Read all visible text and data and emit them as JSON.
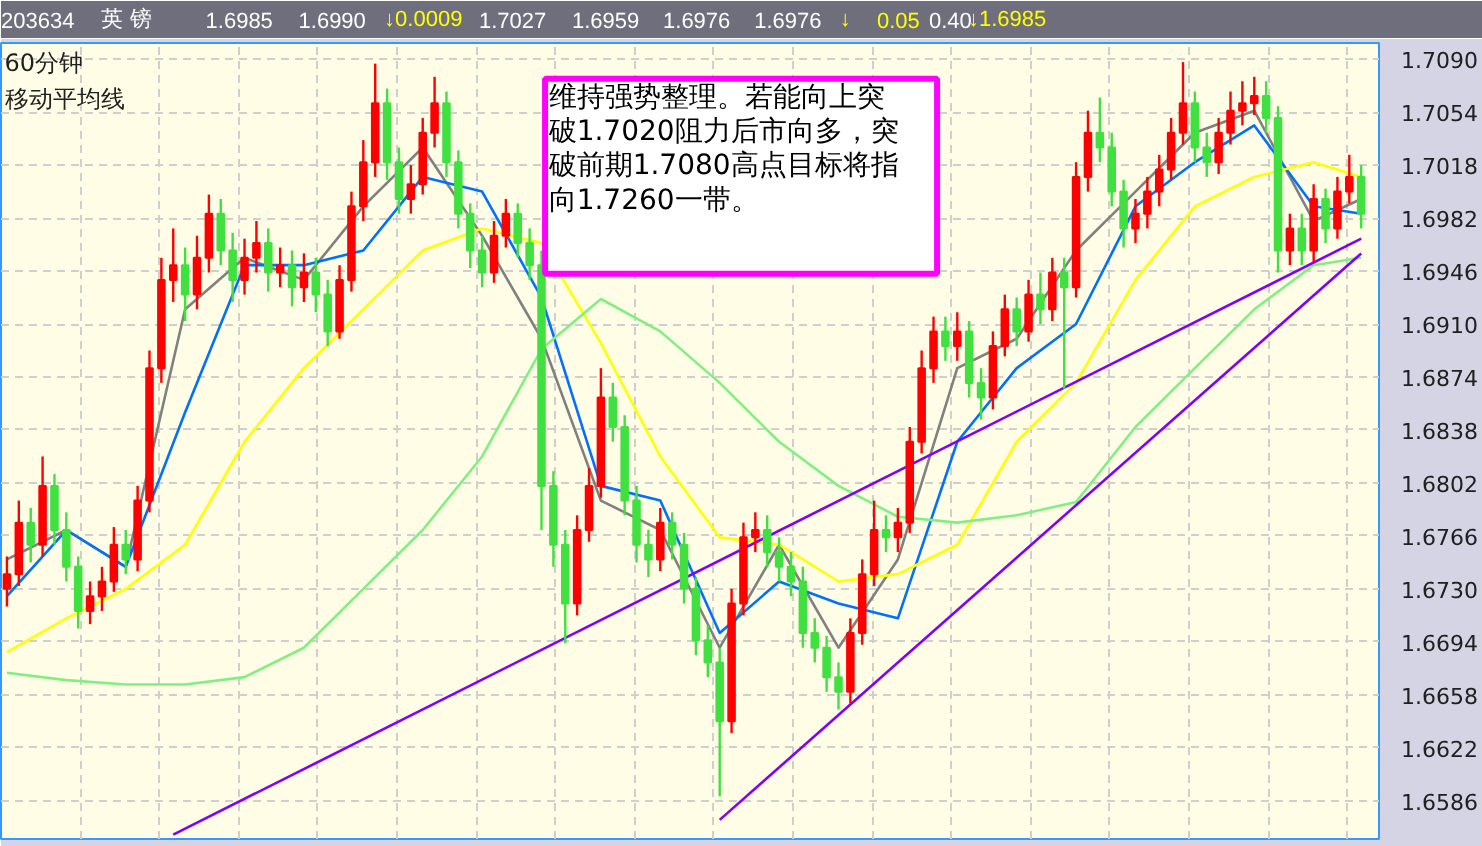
{
  "chart_data": {
    "type": "candlestick",
    "title": "60分钟",
    "subtitle": "移动平均线",
    "annotations": [
      "维持强势整理。若能向上突破1.7020阻力后市向多，突破前期1.7080高点目标将指向1.7260一带。",
      "203634",
      "英  镑",
      "1.6985",
      "1.6990",
      "↓0.0009",
      "1.7027",
      "1.6959",
      "1.6976",
      "1.6976",
      "↓",
      "0.05",
      "0.40",
      "↓1.6985"
    ],
    "categories": [
      null,
      null,
      null,
      null,
      null,
      null,
      null,
      null,
      null,
      null,
      null,
      null,
      null,
      null,
      null,
      null,
      null,
      null,
      null,
      null,
      null,
      null,
      null,
      null,
      null,
      null,
      null,
      null,
      null,
      null,
      null,
      null,
      null,
      null,
      null,
      null,
      null,
      null,
      null,
      null,
      null,
      null,
      null,
      null,
      null,
      null,
      null,
      null,
      null,
      null,
      null,
      null,
      null,
      null,
      null,
      null,
      null,
      null,
      null,
      null,
      null,
      null,
      null,
      null,
      null,
      null,
      null,
      null,
      null,
      null,
      null,
      null,
      null,
      null,
      null,
      null,
      null,
      null,
      null,
      null,
      null,
      null,
      null,
      null,
      null,
      null,
      null,
      null,
      null,
      null,
      null,
      null,
      null,
      null,
      null,
      null,
      null,
      null,
      null,
      null,
      null,
      null,
      null,
      null,
      null,
      null,
      null,
      null,
      null,
      null,
      null,
      null,
      null,
      null,
      null
    ],
    "ohlc": [
      [
        1.673,
        1.6752,
        1.6718,
        1.674
      ],
      [
        1.674,
        1.679,
        1.6732,
        1.6775
      ],
      [
        1.6775,
        1.6785,
        1.6748,
        1.676
      ],
      [
        1.676,
        1.682,
        1.6752,
        1.68
      ],
      [
        1.68,
        1.6808,
        1.676,
        1.677
      ],
      [
        1.677,
        1.6782,
        1.6735,
        1.6745
      ],
      [
        1.6745,
        1.6752,
        1.6703,
        1.6715
      ],
      [
        1.6715,
        1.6735,
        1.6706,
        1.6725
      ],
      [
        1.6725,
        1.6745,
        1.6715,
        1.6735
      ],
      [
        1.6735,
        1.6772,
        1.6728,
        1.676
      ],
      [
        1.676,
        1.677,
        1.674,
        1.675
      ],
      [
        1.675,
        1.68,
        1.6742,
        1.679
      ],
      [
        1.679,
        1.6892,
        1.6782,
        1.688
      ],
      [
        1.688,
        1.6955,
        1.687,
        1.694
      ],
      [
        1.694,
        1.6975,
        1.6925,
        1.695
      ],
      [
        1.695,
        1.6962,
        1.6912,
        1.693
      ],
      [
        1.693,
        1.697,
        1.692,
        1.6955
      ],
      [
        1.6955,
        1.6998,
        1.6945,
        1.6985
      ],
      [
        1.6985,
        1.6995,
        1.695,
        1.696
      ],
      [
        1.696,
        1.6972,
        1.6925,
        1.694
      ],
      [
        1.694,
        1.6968,
        1.693,
        1.6955
      ],
      [
        1.6955,
        1.698,
        1.6945,
        1.6965
      ],
      [
        1.6965,
        1.6975,
        1.6932,
        1.6945
      ],
      [
        1.6945,
        1.6962,
        1.6935,
        1.695
      ],
      [
        1.695,
        1.696,
        1.6922,
        1.6935
      ],
      [
        1.6935,
        1.6958,
        1.6925,
        1.6945
      ],
      [
        1.6945,
        1.6955,
        1.6918,
        1.693
      ],
      [
        1.693,
        1.694,
        1.6895,
        1.6905
      ],
      [
        1.6905,
        1.695,
        1.69,
        1.694
      ],
      [
        1.694,
        1.7,
        1.6932,
        1.699
      ],
      [
        1.699,
        1.7035,
        1.698,
        1.702
      ],
      [
        1.702,
        1.7087,
        1.701,
        1.706
      ],
      [
        1.706,
        1.707,
        1.7008,
        1.702
      ],
      [
        1.702,
        1.703,
        1.6985,
        1.6995
      ],
      [
        1.6995,
        1.7018,
        1.6985,
        1.7005
      ],
      [
        1.7005,
        1.705,
        1.6998,
        1.704
      ],
      [
        1.704,
        1.7078,
        1.703,
        1.706
      ],
      [
        1.706,
        1.7068,
        1.701,
        1.702
      ],
      [
        1.702,
        1.7028,
        1.6975,
        1.6985
      ],
      [
        1.6985,
        1.6992,
        1.6948,
        1.696
      ],
      [
        1.696,
        1.697,
        1.6935,
        1.6945
      ],
      [
        1.6945,
        1.698,
        1.6938,
        1.697
      ],
      [
        1.697,
        1.6995,
        1.6962,
        1.6985
      ],
      [
        1.6985,
        1.6992,
        1.6955,
        1.6965
      ],
      [
        1.6965,
        1.6975,
        1.694,
        1.695
      ],
      [
        1.695,
        1.696,
        1.677,
        1.68
      ],
      [
        1.68,
        1.681,
        1.6745,
        1.676
      ],
      [
        1.676,
        1.677,
        1.6693,
        1.672
      ],
      [
        1.672,
        1.678,
        1.6712,
        1.677
      ],
      [
        1.677,
        1.6812,
        1.6762,
        1.68
      ],
      [
        1.68,
        1.688,
        1.6792,
        1.686
      ],
      [
        1.686,
        1.687,
        1.683,
        1.684
      ],
      [
        1.684,
        1.6848,
        1.678,
        1.679
      ],
      [
        1.679,
        1.68,
        1.6748,
        1.676
      ],
      [
        1.676,
        1.677,
        1.6738,
        1.675
      ],
      [
        1.675,
        1.6785,
        1.6742,
        1.6775
      ],
      [
        1.6775,
        1.6782,
        1.675,
        1.676
      ],
      [
        1.676,
        1.6768,
        1.672,
        1.673
      ],
      [
        1.673,
        1.6738,
        1.6685,
        1.6695
      ],
      [
        1.6695,
        1.6705,
        1.667,
        1.668
      ],
      [
        1.668,
        1.669,
        1.6589,
        1.664
      ],
      [
        1.664,
        1.673,
        1.6632,
        1.672
      ],
      [
        1.672,
        1.6775,
        1.6712,
        1.6765
      ],
      [
        1.6765,
        1.6782,
        1.6755,
        1.677
      ],
      [
        1.677,
        1.678,
        1.6745,
        1.6755
      ],
      [
        1.6755,
        1.6765,
        1.6735,
        1.6745
      ],
      [
        1.6745,
        1.6755,
        1.6725,
        1.6735
      ],
      [
        1.6735,
        1.6745,
        1.669,
        1.67
      ],
      [
        1.67,
        1.671,
        1.668,
        1.669
      ],
      [
        1.669,
        1.6698,
        1.666,
        1.667
      ],
      [
        1.667,
        1.668,
        1.6648,
        1.666
      ],
      [
        1.666,
        1.671,
        1.6652,
        1.67
      ],
      [
        1.67,
        1.675,
        1.6692,
        1.674
      ],
      [
        1.674,
        1.679,
        1.6732,
        1.677
      ],
      [
        1.677,
        1.678,
        1.6755,
        1.6765
      ],
      [
        1.6765,
        1.6785,
        1.6755,
        1.6775
      ],
      [
        1.6775,
        1.684,
        1.6768,
        1.683
      ],
      [
        1.683,
        1.6892,
        1.6822,
        1.688
      ],
      [
        1.688,
        1.6915,
        1.687,
        1.6905
      ],
      [
        1.6905,
        1.6915,
        1.6885,
        1.6895
      ],
      [
        1.6895,
        1.6918,
        1.6885,
        1.6905
      ],
      [
        1.6905,
        1.6912,
        1.686,
        1.687
      ],
      [
        1.687,
        1.688,
        1.6845,
        1.686
      ],
      [
        1.686,
        1.6905,
        1.6852,
        1.6895
      ],
      [
        1.6895,
        1.693,
        1.6888,
        1.692
      ],
      [
        1.692,
        1.6928,
        1.6895,
        1.6905
      ],
      [
        1.6905,
        1.694,
        1.6898,
        1.693
      ],
      [
        1.693,
        1.6945,
        1.691,
        1.692
      ],
      [
        1.692,
        1.6955,
        1.6912,
        1.6945
      ],
      [
        1.6945,
        1.6955,
        1.6866,
        1.6935
      ],
      [
        1.6935,
        1.702,
        1.6928,
        1.701
      ],
      [
        1.701,
        1.7055,
        1.7,
        1.704
      ],
      [
        1.704,
        1.7064,
        1.702,
        1.703
      ],
      [
        1.703,
        1.704,
        1.699,
        1.7
      ],
      [
        1.7,
        1.7008,
        1.6962,
        1.6975
      ],
      [
        1.6975,
        1.6995,
        1.6965,
        1.6985
      ],
      [
        1.6985,
        1.701,
        1.6975,
        1.7
      ],
      [
        1.7,
        1.7025,
        1.699,
        1.7015
      ],
      [
        1.7015,
        1.705,
        1.7008,
        1.704
      ],
      [
        1.704,
        1.7088,
        1.7032,
        1.706
      ],
      [
        1.706,
        1.7068,
        1.702,
        1.703
      ],
      [
        1.703,
        1.704,
        1.701,
        1.702
      ],
      [
        1.702,
        1.705,
        1.7012,
        1.704
      ],
      [
        1.704,
        1.7068,
        1.7032,
        1.7055
      ],
      [
        1.7055,
        1.7075,
        1.7045,
        1.706
      ],
      [
        1.706,
        1.7078,
        1.7052,
        1.7065
      ],
      [
        1.7065,
        1.7075,
        1.704,
        1.705
      ],
      [
        1.705,
        1.7058,
        1.6945,
        1.696
      ],
      [
        1.696,
        1.6985,
        1.695,
        1.6975
      ],
      [
        1.6975,
        1.6985,
        1.695,
        1.696
      ],
      [
        1.696,
        1.7005,
        1.6952,
        1.6995
      ],
      [
        1.6995,
        1.7002,
        1.6965,
        1.6975
      ],
      [
        1.6975,
        1.701,
        1.6968,
        1.7
      ],
      [
        1.7,
        1.7025,
        1.6992,
        1.701
      ],
      [
        1.701,
        1.7018,
        1.6975,
        1.6985
      ]
    ],
    "series": [
      {
        "type": "line",
        "color": "#808080",
        "values": [
          1.675,
          null,
          null,
          null,
          null,
          1.677,
          null,
          null,
          null,
          null,
          1.6745,
          null,
          null,
          null,
          null,
          1.692,
          null,
          null,
          null,
          null,
          1.6955,
          null,
          null,
          null,
          null,
          1.694,
          null,
          null,
          null,
          null,
          1.699,
          null,
          null,
          null,
          null,
          1.703,
          null,
          null,
          null,
          null,
          1.697,
          null,
          null,
          null,
          null,
          1.69,
          null,
          null,
          null,
          null,
          1.679,
          null,
          null,
          null,
          null,
          1.677,
          null,
          null,
          null,
          null,
          1.669,
          null,
          null,
          null,
          null,
          1.676,
          null,
          null,
          null,
          null,
          1.669,
          null,
          null,
          null,
          null,
          1.675,
          null,
          null,
          null,
          null,
          1.688,
          null,
          null,
          null,
          null,
          1.69,
          null,
          null,
          null,
          null,
          1.696,
          null,
          null,
          null,
          null,
          1.7,
          null,
          null,
          null,
          null,
          1.704,
          null,
          null,
          null,
          null,
          1.7055,
          null,
          null,
          null,
          null,
          1.698,
          null,
          null,
          null,
          1.6995
        ]
      },
      {
        "type": "line",
        "color": "#0070ff",
        "values": [
          1.6725,
          null,
          null,
          null,
          null,
          1.677,
          null,
          null,
          null,
          null,
          1.6745,
          null,
          null,
          null,
          null,
          1.685,
          null,
          null,
          null,
          null,
          1.695,
          null,
          null,
          null,
          null,
          1.695,
          null,
          null,
          null,
          null,
          1.696,
          null,
          null,
          null,
          null,
          1.701,
          null,
          null,
          null,
          null,
          1.7,
          null,
          null,
          null,
          null,
          1.6928,
          null,
          null,
          null,
          null,
          1.68,
          null,
          null,
          null,
          null,
          1.679,
          null,
          null,
          null,
          null,
          1.67,
          null,
          null,
          null,
          null,
          1.6735,
          null,
          null,
          null,
          null,
          1.672,
          null,
          null,
          null,
          null,
          1.671,
          null,
          null,
          null,
          null,
          1.683,
          null,
          null,
          null,
          null,
          1.688,
          null,
          null,
          null,
          null,
          1.691,
          null,
          null,
          null,
          null,
          1.699,
          null,
          null,
          null,
          null,
          1.702,
          null,
          null,
          null,
          null,
          1.7045,
          null,
          null,
          null,
          null,
          1.699,
          null,
          null,
          null,
          1.6985
        ]
      },
      {
        "type": "line",
        "color": "#ffff00",
        "values": [
          1.6687,
          null,
          null,
          null,
          null,
          1.671,
          null,
          null,
          null,
          null,
          1.673,
          null,
          null,
          null,
          null,
          1.676,
          null,
          null,
          null,
          null,
          1.683,
          null,
          null,
          null,
          null,
          1.688,
          null,
          null,
          null,
          null,
          1.692,
          null,
          null,
          null,
          null,
          1.696,
          null,
          null,
          null,
          null,
          1.6975,
          null,
          null,
          null,
          null,
          1.6965,
          null,
          null,
          null,
          null,
          1.6897,
          null,
          null,
          null,
          null,
          1.682,
          null,
          null,
          null,
          null,
          1.6765,
          null,
          null,
          null,
          null,
          1.676,
          null,
          null,
          null,
          null,
          1.6735,
          null,
          null,
          null,
          null,
          1.674,
          null,
          null,
          null,
          null,
          1.676,
          null,
          null,
          null,
          null,
          1.683,
          null,
          null,
          null,
          null,
          1.687,
          null,
          null,
          null,
          null,
          1.694,
          null,
          null,
          null,
          null,
          1.699,
          null,
          null,
          null,
          null,
          1.701,
          null,
          null,
          null,
          null,
          1.702,
          null,
          null,
          null,
          1.701
        ]
      },
      {
        "type": "line",
        "color": "#80f080",
        "values": [
          1.6673,
          null,
          null,
          null,
          null,
          1.6668,
          null,
          null,
          null,
          null,
          1.6665,
          null,
          null,
          null,
          null,
          1.6665,
          null,
          null,
          null,
          null,
          1.667,
          null,
          null,
          null,
          null,
          1.669,
          null,
          null,
          null,
          null,
          1.673,
          null,
          null,
          null,
          null,
          1.677,
          null,
          null,
          null,
          null,
          1.682,
          null,
          null,
          null,
          null,
          1.6893,
          null,
          null,
          null,
          null,
          1.6927,
          null,
          null,
          null,
          null,
          1.6905,
          null,
          null,
          null,
          null,
          1.687,
          null,
          null,
          null,
          null,
          1.683,
          null,
          null,
          null,
          null,
          1.68,
          null,
          null,
          null,
          null,
          1.6779,
          null,
          null,
          null,
          null,
          1.6775,
          null,
          null,
          null,
          null,
          1.678,
          null,
          null,
          null,
          null,
          1.6789,
          null,
          null,
          null,
          null,
          1.684,
          null,
          null,
          null,
          null,
          1.688,
          null,
          null,
          null,
          null,
          1.692,
          null,
          null,
          null,
          null,
          1.695,
          null,
          null,
          null,
          1.6955
        ]
      },
      {
        "type": "line",
        "color": "#8000ff",
        "values": [
          null,
          null,
          null,
          null,
          null,
          null,
          null,
          null,
          null,
          null,
          null,
          null,
          null,
          null,
          1.6563,
          null,
          null,
          null,
          null,
          null,
          null,
          null,
          null,
          null,
          null,
          null,
          null,
          null,
          null,
          null,
          null,
          null,
          null,
          null,
          null,
          null,
          null,
          null,
          null,
          null,
          null,
          null,
          null,
          null,
          null,
          null,
          null,
          null,
          null,
          null,
          null,
          null,
          null,
          null,
          null,
          null,
          null,
          null,
          null,
          null,
          null,
          null,
          null,
          null,
          null,
          null,
          null,
          null,
          null,
          null,
          null,
          null,
          null,
          null,
          null,
          null,
          null,
          null,
          null,
          null,
          null,
          null,
          null,
          null,
          null,
          null,
          null,
          null,
          null,
          null,
          null,
          null,
          null,
          null,
          null,
          null,
          null,
          null,
          null,
          null,
          null,
          null,
          null,
          null,
          null,
          null,
          null,
          null,
          null,
          null,
          null,
          null,
          null,
          null,
          1.6968
        ]
      },
      {
        "type": "line",
        "color": "#8000ff",
        "values": [
          null,
          null,
          null,
          null,
          null,
          null,
          null,
          null,
          null,
          null,
          null,
          null,
          null,
          null,
          null,
          null,
          null,
          null,
          null,
          null,
          null,
          null,
          null,
          null,
          null,
          null,
          null,
          null,
          null,
          null,
          null,
          null,
          null,
          null,
          null,
          null,
          null,
          null,
          null,
          null,
          null,
          null,
          null,
          null,
          null,
          null,
          null,
          null,
          null,
          null,
          null,
          null,
          null,
          null,
          null,
          null,
          null,
          null,
          null,
          null,
          1.6573,
          null,
          null,
          null,
          null,
          null,
          null,
          null,
          null,
          null,
          null,
          null,
          null,
          null,
          null,
          null,
          null,
          null,
          null,
          null,
          null,
          null,
          null,
          null,
          null,
          null,
          null,
          null,
          null,
          null,
          null,
          null,
          null,
          null,
          null,
          null,
          null,
          null,
          null,
          null,
          null,
          null,
          null,
          null,
          null,
          null,
          null,
          null,
          null,
          null,
          null,
          null,
          null,
          null,
          1.6958
        ]
      }
    ],
    "ylim": [
      1.656,
      1.7101
    ],
    "yticks": [
      {
        "value": 1.709,
        "label": "1.7090"
      },
      1.7054,
      1.7018,
      1.6982,
      1.6946,
      {
        "value": 1.691,
        "label": "1.6910"
      },
      1.6874,
      1.6838,
      1.6802,
      1.6766,
      {
        "value": 1.673,
        "label": "1.6730"
      },
      1.6694,
      1.6658,
      1.6622,
      1.6586
    ],
    "grid": true,
    "tick_labels": "y"
  }
}
